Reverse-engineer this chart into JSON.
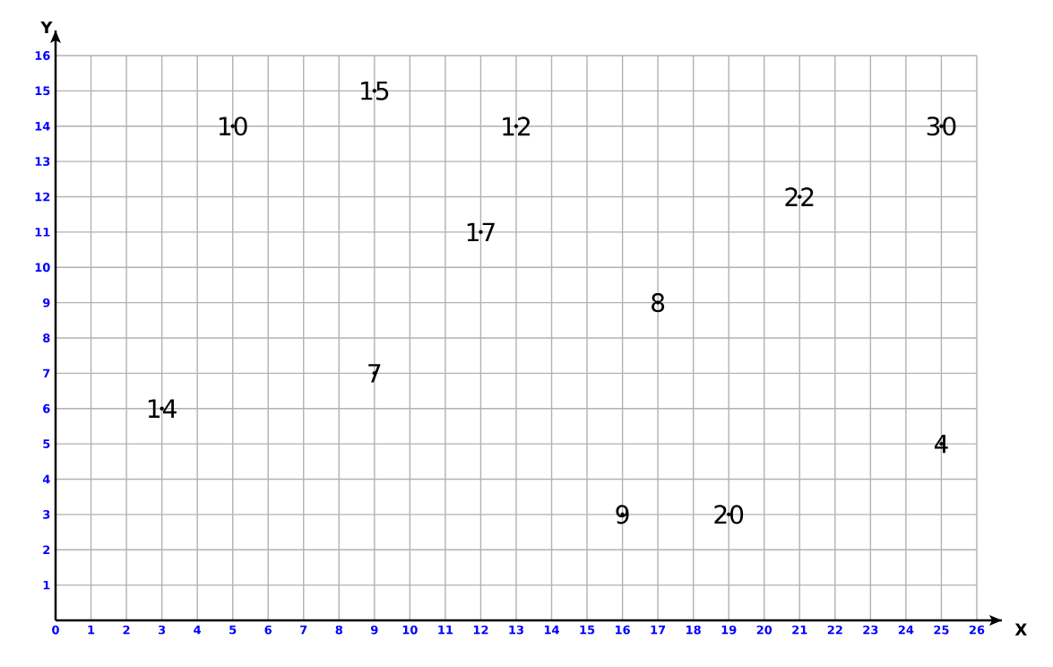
{
  "chart_data": {
    "type": "scatter",
    "xlabel": "X",
    "ylabel": "Y",
    "grid": true,
    "xlim": [
      0,
      26
    ],
    "ylim": [
      0,
      16
    ],
    "xticks": [
      0,
      1,
      2,
      3,
      4,
      5,
      6,
      7,
      8,
      9,
      10,
      11,
      12,
      13,
      14,
      15,
      16,
      17,
      18,
      19,
      20,
      21,
      22,
      23,
      24,
      25,
      26
    ],
    "yticks": [
      1,
      2,
      3,
      4,
      5,
      6,
      7,
      8,
      9,
      10,
      11,
      12,
      13,
      14,
      15,
      16
    ],
    "series": [
      {
        "color": "#000000",
        "x": [
          5,
          9,
          13,
          25,
          21,
          12,
          17,
          9,
          3,
          25,
          16,
          19
        ],
        "values": [
          14,
          15,
          14,
          14,
          12,
          11,
          9,
          7,
          6,
          5,
          3,
          3
        ]
      }
    ],
    "annotations": [
      {
        "text": "10",
        "x": 5,
        "y": 14
      },
      {
        "text": "15",
        "x": 9,
        "y": 15
      },
      {
        "text": "12",
        "x": 13,
        "y": 14
      },
      {
        "text": "30",
        "x": 25,
        "y": 14
      },
      {
        "text": "22",
        "x": 21,
        "y": 12
      },
      {
        "text": "17",
        "x": 12,
        "y": 11
      },
      {
        "text": "8",
        "x": 17,
        "y": 9
      },
      {
        "text": "7",
        "x": 9,
        "y": 7
      },
      {
        "text": "14",
        "x": 3,
        "y": 6
      },
      {
        "text": "4",
        "x": 25,
        "y": 5
      },
      {
        "text": "9",
        "x": 16,
        "y": 3
      },
      {
        "text": "20",
        "x": 19,
        "y": 3
      }
    ]
  }
}
